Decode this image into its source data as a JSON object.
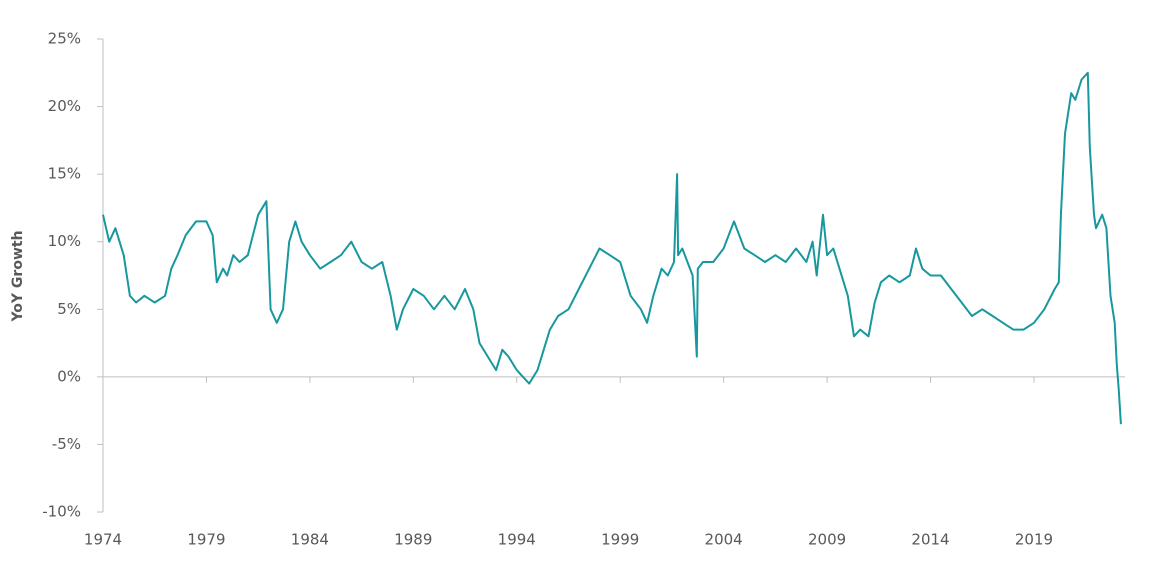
{
  "chart_data": {
    "type": "line",
    "y_label": "YoY Growth",
    "x": [
      1974.0,
      1974.3,
      1974.6,
      1975.0,
      1975.3,
      1975.6,
      1976.0,
      1976.5,
      1977.0,
      1977.3,
      1977.6,
      1978.0,
      1978.5,
      1979.0,
      1979.3,
      1979.5,
      1979.8,
      1980.0,
      1980.3,
      1980.6,
      1981.0,
      1981.5,
      1981.9,
      1982.1,
      1982.4,
      1982.7,
      1983.0,
      1983.3,
      1983.6,
      1984.0,
      1984.5,
      1985.0,
      1985.5,
      1986.0,
      1986.5,
      1987.0,
      1987.5,
      1987.9,
      1988.2,
      1988.5,
      1989.0,
      1989.5,
      1990.0,
      1990.5,
      1991.0,
      1991.5,
      1991.9,
      1992.2,
      1992.6,
      1993.0,
      1993.3,
      1993.6,
      1994.0,
      1994.3,
      1994.6,
      1995.0,
      1995.3,
      1995.6,
      1996.0,
      1996.5,
      1997.0,
      1997.5,
      1998.0,
      1998.5,
      1999.0,
      1999.5,
      2000.0,
      2000.3,
      2000.6,
      2001.0,
      2001.3,
      2001.6,
      2001.75,
      2001.8,
      2002.0,
      2002.5,
      2002.7,
      2002.75,
      2003.0,
      2003.5,
      2004.0,
      2004.5,
      2005.0,
      2005.5,
      2006.0,
      2006.5,
      2007.0,
      2007.5,
      2008.0,
      2008.3,
      2008.5,
      2008.8,
      2009.0,
      2009.3,
      2009.6,
      2010.0,
      2010.3,
      2010.6,
      2011.0,
      2011.3,
      2011.6,
      2012.0,
      2012.5,
      2013.0,
      2013.3,
      2013.6,
      2014.0,
      2014.5,
      2015.0,
      2015.5,
      2016.0,
      2016.5,
      2017.0,
      2017.5,
      2018.0,
      2018.5,
      2019.0,
      2019.5,
      2020.0,
      2020.2,
      2020.3,
      2020.5,
      2020.8,
      2021.0,
      2021.3,
      2021.6,
      2021.7,
      2021.9,
      2022.0,
      2022.3,
      2022.5,
      2022.7,
      2022.9,
      2023.0,
      2023.1,
      2023.2
    ],
    "series": [
      {
        "name": "YoY Growth",
        "color": "#17989e",
        "values": [
          12,
          10,
          11,
          9,
          6,
          5.5,
          6,
          5.5,
          6,
          8,
          9,
          10.5,
          11.5,
          11.5,
          10.5,
          7,
          8,
          7.5,
          9,
          8.5,
          9,
          12,
          13,
          5,
          4,
          5,
          10,
          11.5,
          10,
          9,
          8,
          8.5,
          9,
          10,
          8.5,
          8,
          8.5,
          6,
          3.5,
          5,
          6.5,
          6,
          5,
          6,
          5,
          6.5,
          5,
          2.5,
          1.5,
          0.5,
          2,
          1.5,
          0.5,
          0,
          -0.5,
          0.5,
          2,
          3.5,
          4.5,
          5,
          6.5,
          8,
          9.5,
          9,
          8.5,
          6,
          5,
          4,
          6,
          8,
          7.5,
          8.5,
          15,
          9,
          9.5,
          7.5,
          1.5,
          8,
          8.5,
          8.5,
          9.5,
          11.5,
          9.5,
          9,
          8.5,
          9,
          8.5,
          9.5,
          8.5,
          10,
          7.5,
          12,
          9,
          9.5,
          8,
          6,
          3,
          3.5,
          3,
          5.5,
          7,
          7.5,
          7,
          7.5,
          9.5,
          8,
          7.5,
          7.5,
          6.5,
          5.5,
          4.5,
          5,
          4.5,
          4,
          3.5,
          3.5,
          4,
          5,
          6.5,
          7,
          12,
          18,
          21,
          20.5,
          22,
          22.5,
          17,
          12,
          11,
          12,
          11,
          6,
          4,
          1,
          -1,
          -3.5
        ]
      }
    ],
    "xlim": [
      1974,
      2023.4
    ],
    "xticks": [
      1974,
      1979,
      1984,
      1989,
      1994,
      1999,
      2004,
      2009,
      2014,
      2019
    ],
    "ylim": [
      -10,
      25
    ],
    "yticks": [
      {
        "value": -10,
        "label": "-10%"
      },
      {
        "value": -5,
        "label": "-5%"
      },
      {
        "value": 0,
        "label": "0%"
      },
      {
        "value": 5,
        "label": "5%"
      },
      {
        "value": 10,
        "label": "10%"
      },
      {
        "value": 15,
        "label": "15%"
      },
      {
        "value": 20,
        "label": "20%"
      },
      {
        "value": 25,
        "label": "25%"
      }
    ]
  }
}
